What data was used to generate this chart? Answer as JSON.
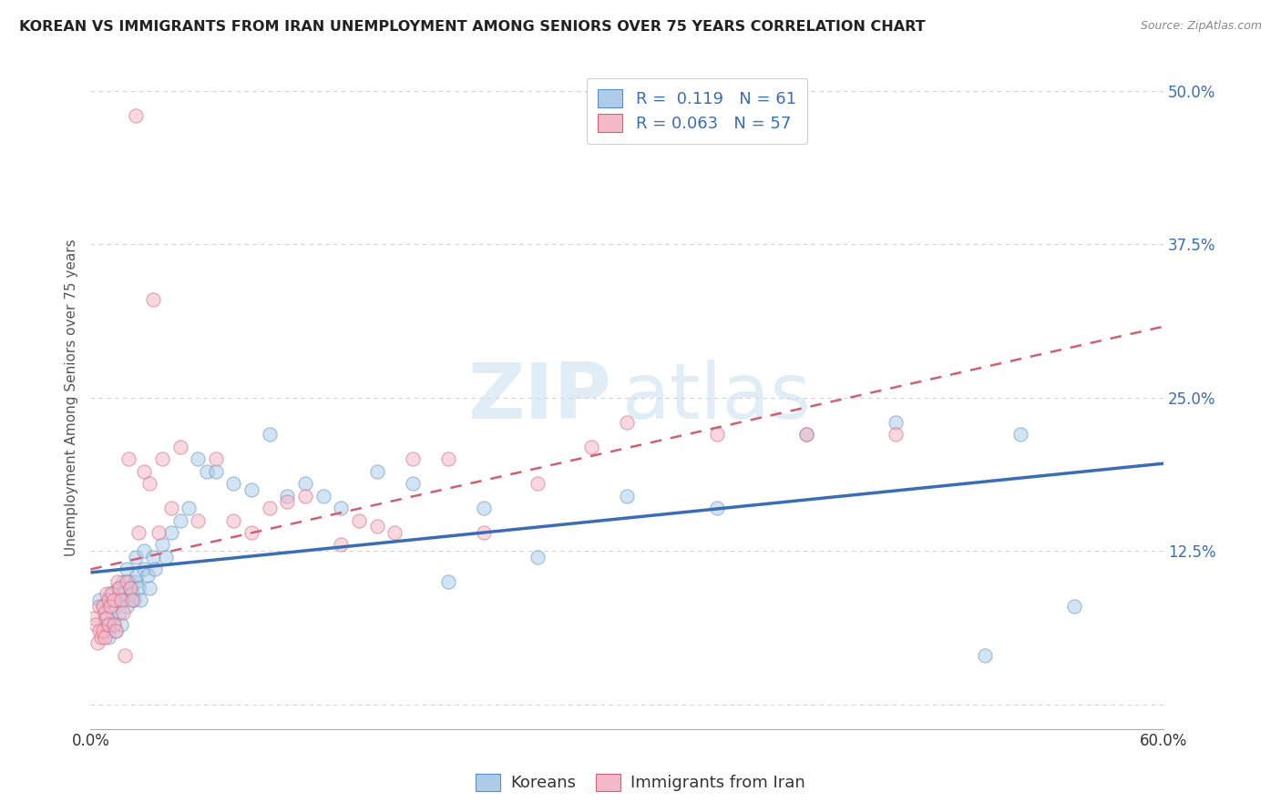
{
  "title": "KOREAN VS IMMIGRANTS FROM IRAN UNEMPLOYMENT AMONG SENIORS OVER 75 YEARS CORRELATION CHART",
  "source": "Source: ZipAtlas.com",
  "ylabel": "Unemployment Among Seniors over 75 years",
  "xlim": [
    0.0,
    0.6
  ],
  "ylim": [
    -0.02,
    0.52
  ],
  "xticks": [
    0.0,
    0.1,
    0.2,
    0.3,
    0.4,
    0.5,
    0.6
  ],
  "yticks": [
    0.0,
    0.125,
    0.25,
    0.375,
    0.5
  ],
  "ytick_labels_right": [
    "",
    "12.5%",
    "25.0%",
    "37.5%",
    "50.0%"
  ],
  "legend_entries": [
    {
      "label": "Koreans",
      "color": "#aecce8",
      "edge_color": "#5b8ec4",
      "R": 0.119,
      "N": 61
    },
    {
      "label": "Immigrants from Iran",
      "color": "#f4b8c8",
      "edge_color": "#d4607a",
      "R": 0.063,
      "N": 57
    }
  ],
  "korean_scatter_x": [
    0.005,
    0.007,
    0.008,
    0.009,
    0.01,
    0.01,
    0.011,
    0.012,
    0.013,
    0.014,
    0.015,
    0.015,
    0.016,
    0.017,
    0.018,
    0.018,
    0.019,
    0.02,
    0.02,
    0.021,
    0.022,
    0.023,
    0.024,
    0.025,
    0.025,
    0.026,
    0.027,
    0.028,
    0.03,
    0.03,
    0.032,
    0.033,
    0.035,
    0.036,
    0.04,
    0.042,
    0.045,
    0.05,
    0.055,
    0.06,
    0.065,
    0.07,
    0.08,
    0.09,
    0.1,
    0.11,
    0.12,
    0.13,
    0.14,
    0.16,
    0.18,
    0.2,
    0.22,
    0.25,
    0.3,
    0.35,
    0.4,
    0.45,
    0.5,
    0.52,
    0.55
  ],
  "korean_scatter_y": [
    0.085,
    0.08,
    0.07,
    0.065,
    0.06,
    0.055,
    0.09,
    0.075,
    0.065,
    0.06,
    0.095,
    0.085,
    0.075,
    0.065,
    0.1,
    0.09,
    0.085,
    0.11,
    0.08,
    0.1,
    0.095,
    0.09,
    0.085,
    0.12,
    0.1,
    0.105,
    0.095,
    0.085,
    0.125,
    0.11,
    0.105,
    0.095,
    0.12,
    0.11,
    0.13,
    0.12,
    0.14,
    0.15,
    0.16,
    0.2,
    0.19,
    0.19,
    0.18,
    0.175,
    0.22,
    0.17,
    0.18,
    0.17,
    0.16,
    0.19,
    0.18,
    0.1,
    0.16,
    0.12,
    0.17,
    0.16,
    0.22,
    0.23,
    0.04,
    0.22,
    0.08
  ],
  "iran_scatter_x": [
    0.002,
    0.003,
    0.004,
    0.005,
    0.005,
    0.006,
    0.007,
    0.007,
    0.008,
    0.008,
    0.009,
    0.009,
    0.01,
    0.01,
    0.011,
    0.012,
    0.013,
    0.013,
    0.014,
    0.015,
    0.016,
    0.017,
    0.018,
    0.019,
    0.02,
    0.021,
    0.022,
    0.023,
    0.025,
    0.027,
    0.03,
    0.033,
    0.035,
    0.038,
    0.04,
    0.045,
    0.05,
    0.06,
    0.07,
    0.08,
    0.09,
    0.1,
    0.11,
    0.12,
    0.14,
    0.15,
    0.16,
    0.17,
    0.18,
    0.2,
    0.22,
    0.25,
    0.28,
    0.3,
    0.35,
    0.4,
    0.45
  ],
  "iran_scatter_y": [
    0.07,
    0.065,
    0.05,
    0.08,
    0.06,
    0.055,
    0.08,
    0.06,
    0.075,
    0.055,
    0.09,
    0.07,
    0.085,
    0.065,
    0.08,
    0.09,
    0.085,
    0.065,
    0.06,
    0.1,
    0.095,
    0.085,
    0.075,
    0.04,
    0.1,
    0.2,
    0.095,
    0.085,
    0.48,
    0.14,
    0.19,
    0.18,
    0.33,
    0.14,
    0.2,
    0.16,
    0.21,
    0.15,
    0.2,
    0.15,
    0.14,
    0.16,
    0.165,
    0.17,
    0.13,
    0.15,
    0.145,
    0.14,
    0.2,
    0.2,
    0.14,
    0.18,
    0.21,
    0.23,
    0.22,
    0.22,
    0.22
  ],
  "korean_line_color": "#3a6db5",
  "iran_line_color": "#d06070",
  "scatter_size": 120,
  "scatter_alpha": 0.55,
  "watermark_zip": "ZIP",
  "watermark_atlas": "atlas",
  "background_color": "#ffffff",
  "grid_color": "#cccccc"
}
